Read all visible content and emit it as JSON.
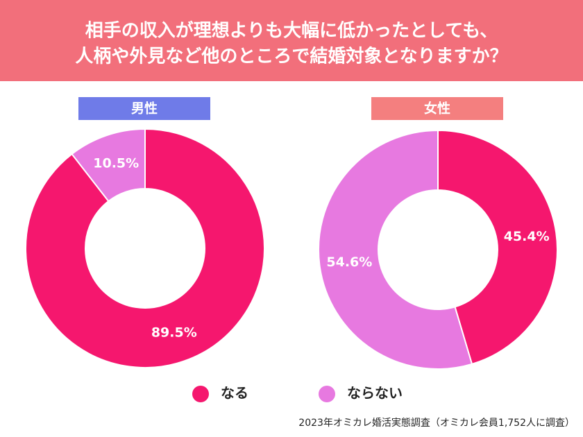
{
  "header": {
    "title_lines": [
      "相手の収入が理想よりも大幅に低かったとしても、",
      "人柄や外見など他のところで結婚対象となりますか？"
    ]
  },
  "chart_data": [
    {
      "type": "pie",
      "donut": true,
      "title": "男性",
      "title_color": "#6f7be8",
      "categories": [
        "なる",
        "ならない"
      ],
      "values": [
        89.5,
        10.5
      ],
      "value_labels": [
        "89.5%",
        "10.5%"
      ],
      "colors": [
        "#f5176e",
        "#e779e0"
      ]
    },
    {
      "type": "pie",
      "donut": true,
      "title": "女性",
      "title_color": "#f47f7f",
      "categories": [
        "なる",
        "ならない"
      ],
      "values": [
        45.4,
        54.6
      ],
      "value_labels": [
        "45.4%",
        "54.6%"
      ],
      "colors": [
        "#f5176e",
        "#e779e0"
      ]
    }
  ],
  "source": "2023年オミカレ婚活実態調査（オミカレ会員1,752人に調査）"
}
